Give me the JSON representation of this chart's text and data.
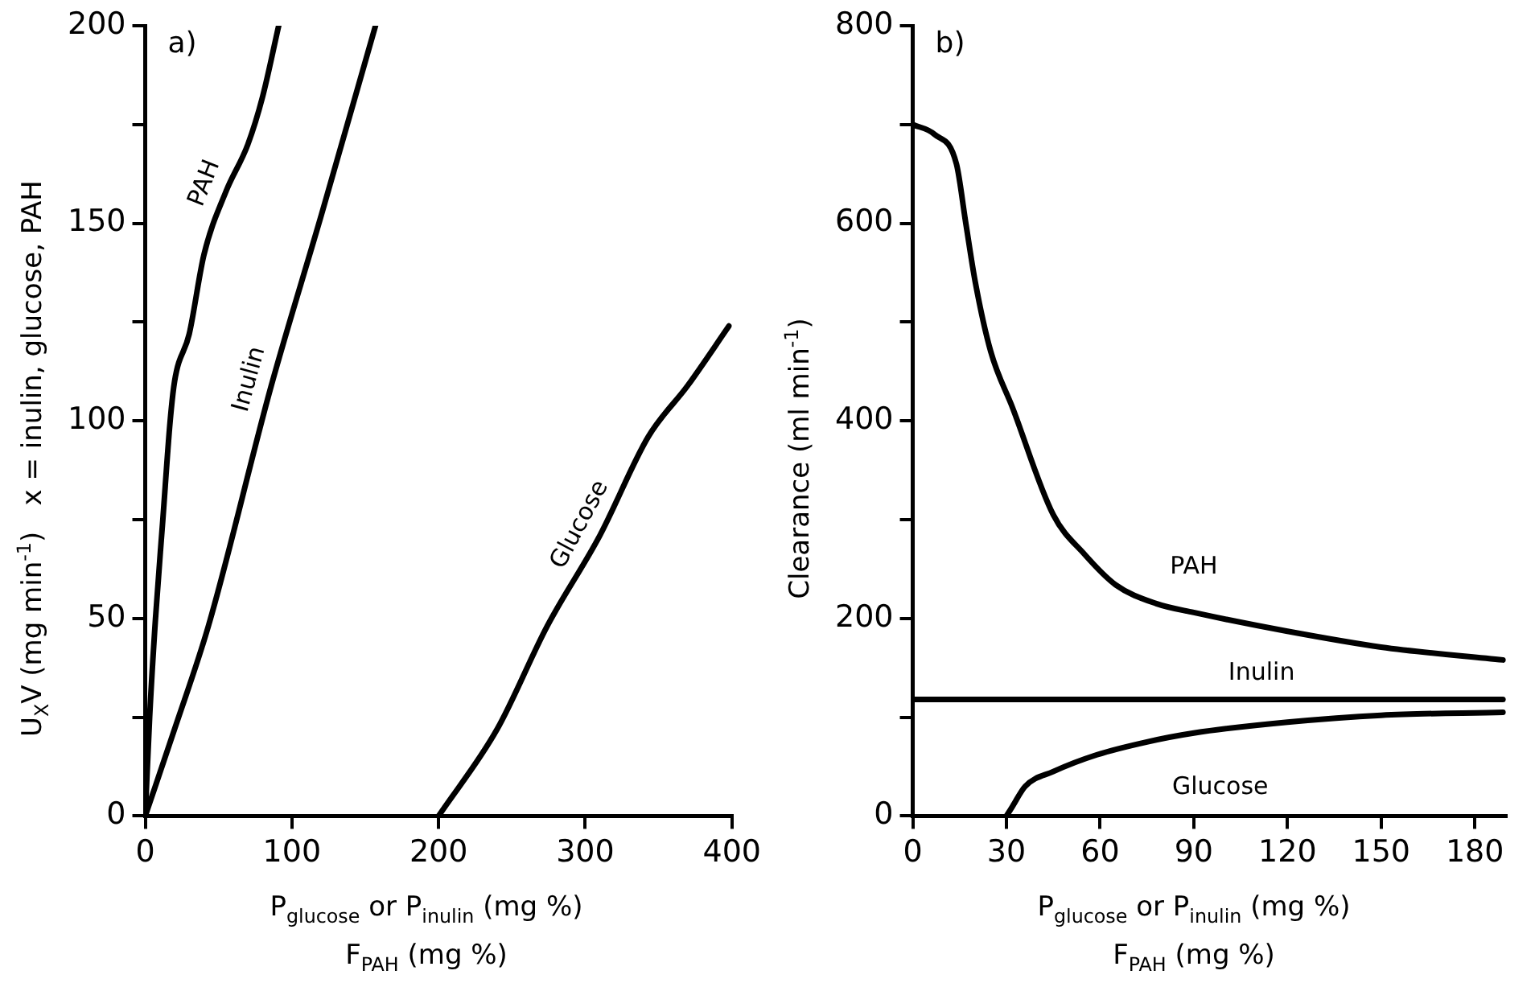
{
  "chart_data": [
    {
      "type": "line",
      "title": "a)",
      "xlabel": "P$_{glucose}$ or P$_{inulin}$ (mg %)\nF$_{PAH}$ (mg %)",
      "ylabel": "U$_{X}$V (mg min$^{-1}$)  x = inulin, glucose, PAH",
      "xlim": [
        0,
        400
      ],
      "xticks": [
        0,
        100,
        200,
        300,
        400
      ],
      "ylim": [
        0,
        200
      ],
      "yticks": [
        0,
        {
          "value": 25,
          "label": null
        },
        50,
        {
          "value": 75,
          "label": null
        },
        100,
        {
          "value": 125,
          "label": null
        },
        150,
        {
          "value": 175,
          "label": null
        },
        200
      ],
      "grid": false,
      "legend": false,
      "marker": "none",
      "line_style": "solid",
      "series": [
        {
          "name": "PAH",
          "color": "#000000",
          "x": [
            0,
            3,
            7,
            12,
            17,
            20,
            30,
            40,
            55,
            70,
            80,
            91
          ],
          "values": [
            0,
            25,
            50,
            75,
            100,
            110,
            122,
            142,
            158,
            170,
            182,
            200
          ]
        },
        {
          "name": "Inulin",
          "color": "#000000",
          "x": [
            0,
            20,
            43,
            86,
            120,
            157
          ],
          "values": [
            0,
            22,
            48,
            109,
            152,
            200
          ]
        },
        {
          "name": "Glucose",
          "color": "#000000",
          "x": [
            200,
            240,
            274,
            310,
            343,
            370,
            398
          ],
          "values": [
            0,
            22,
            48,
            71,
            96,
            109,
            124
          ]
        }
      ]
    },
    {
      "type": "line",
      "title": "b)",
      "xlabel": "P$_{glucose}$ or P$_{inulin}$ (mg %)\nF$_{PAH}$ (mg %)",
      "ylabel": "Clearance (ml min$^{-1}$)",
      "xlim": [
        0,
        190
      ],
      "xticks": [
        0,
        30,
        60,
        90,
        120,
        150,
        180
      ],
      "ylim": [
        0,
        800
      ],
      "yticks": [
        0,
        {
          "value": 100,
          "label": null
        },
        200,
        {
          "value": 300,
          "label": null
        },
        400,
        {
          "value": 500,
          "label": null
        },
        600,
        {
          "value": 700,
          "label": null
        },
        800
      ],
      "grid": false,
      "legend": false,
      "marker": "none",
      "line_style": "solid",
      "series": [
        {
          "name": "PAH",
          "color": "#000000",
          "x": [
            0,
            7,
            14,
            17,
            20,
            25,
            32,
            45,
            55,
            65,
            78,
            90,
            120,
            150,
            189
          ],
          "values": [
            700,
            690,
            660,
            600,
            541,
            470,
            413,
            305,
            265,
            234,
            215,
            206,
            187,
            171,
            158
          ]
        },
        {
          "name": "Inulin",
          "color": "#000000",
          "x": [
            0,
            189
          ],
          "values": [
            118,
            118
          ]
        },
        {
          "name": "Glucose",
          "color": "#000000",
          "x": [
            30,
            32,
            36,
            45,
            59,
            75,
            90,
            120,
            150,
            189
          ],
          "values": [
            0,
            10,
            30,
            45,
            62,
            75,
            84,
            95,
            102,
            105
          ]
        }
      ]
    }
  ]
}
